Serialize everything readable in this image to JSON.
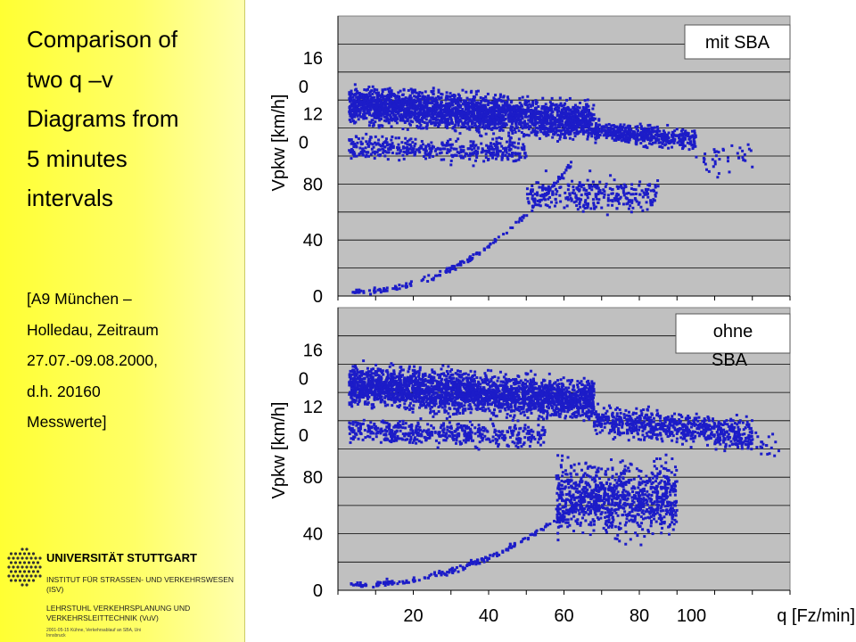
{
  "sidebar": {
    "title_lines": [
      "Comparison of",
      "two q –v",
      "Diagrams from",
      "5 minutes",
      "intervals"
    ],
    "note_lines": [
      "[A9 München –",
      "Holledau,  Zeitraum",
      "27.07.-09.08.2000,",
      "d.h.  20160",
      "Messwerte]"
    ]
  },
  "footer": {
    "university": "UNIVERSITÄT STUTTGART",
    "institute_1": "INSTITUT FÜR STRASSEN- UND VERKEHRSWESEN (ISV)",
    "institute_2": "LEHRSTUHL VERKEHRSPLANUNG UND VERKEHRSLEITTECHNIK (VuV)",
    "footnote": "2001-05-15  Kühne, Verkehrsablauf an SBA, Uni Innsbruck"
  },
  "colors": {
    "marker": "#1c1cc8",
    "plot_bg": "#c0c0c0",
    "sidebar": "#ffff55"
  },
  "chart_data": [
    {
      "type": "scatter",
      "title": "mit SBA",
      "ylabel": "Vpkw [km/h]",
      "yticks": [
        "0",
        "40",
        "80",
        "12\n0",
        "16\n0"
      ],
      "ylim": [
        0,
        200
      ],
      "xlim": [
        0,
        120
      ],
      "grid": true,
      "series": [
        {
          "clusters": [
            {
              "x": [
                3,
                68
              ],
              "y": [
                118,
                155
              ],
              "y_slope": -0.45,
              "n": 2600
            },
            {
              "x": [
                68,
                95
              ],
              "y": [
                108,
                128
              ],
              "y_slope": -0.6,
              "n": 500
            },
            {
              "x": [
                3,
                50
              ],
              "y": [
                95,
                118
              ],
              "y_slope": -0.2,
              "n": 450
            },
            {
              "x": [
                50,
                85
              ],
              "y": [
                55,
                90
              ],
              "y_slope": 0,
              "n": 320
            },
            {
              "x": [
                95,
                110
              ],
              "y": [
                80,
                115
              ],
              "y_slope": 0,
              "n": 40
            }
          ],
          "lower_branch": {
            "x": [
              3,
              62
            ],
            "y": [
              3,
              95
            ],
            "n": 170
          }
        }
      ]
    },
    {
      "type": "scatter",
      "title": "ohne SBA",
      "ylabel": "Vpkw [km/h]",
      "xlabel": "q [Fz/min]",
      "xticks": [
        "20",
        "40",
        "60",
        "80",
        "100"
      ],
      "yticks": [
        "0",
        "40",
        "80",
        "12\n0",
        "16\n0"
      ],
      "ylim": [
        0,
        200
      ],
      "xlim": [
        0,
        120
      ],
      "grid": true,
      "series": [
        {
          "clusters": [
            {
              "x": [
                3,
                68
              ],
              "y": [
                125,
                165
              ],
              "y_slope": -0.4,
              "n": 2700
            },
            {
              "x": [
                68,
                110
              ],
              "y": [
                105,
                135
              ],
              "y_slope": -0.55,
              "n": 700
            },
            {
              "x": [
                3,
                55
              ],
              "y": [
                100,
                125
              ],
              "y_slope": -0.15,
              "n": 500
            },
            {
              "x": [
                58,
                90
              ],
              "y": [
                30,
                100
              ],
              "y_slope": 0,
              "n": 1000
            },
            {
              "x": [
                100,
                118
              ],
              "y": [
                90,
                120
              ],
              "y_slope": 0,
              "n": 40
            }
          ],
          "lower_branch": {
            "x": [
              3,
              70
            ],
            "y": [
              4,
              75
            ],
            "n": 220
          }
        }
      ]
    }
  ]
}
